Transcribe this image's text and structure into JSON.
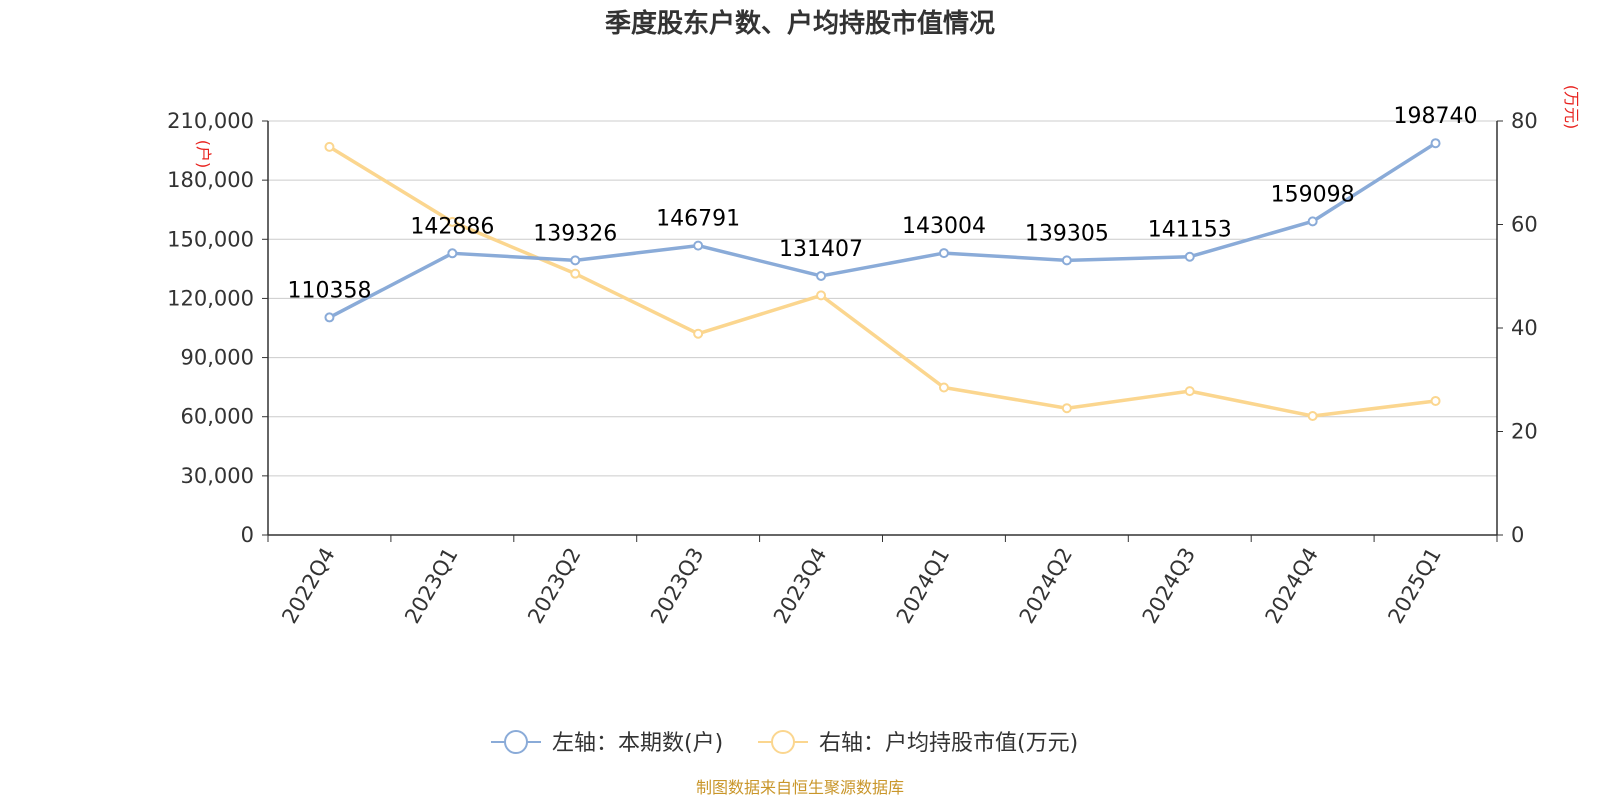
{
  "chart_data": {
    "type": "line",
    "title": "季度股东户数、户均持股市值情况",
    "categories": [
      "2022Q4",
      "2023Q1",
      "2023Q2",
      "2023Q3",
      "2023Q4",
      "2024Q1",
      "2024Q2",
      "2024Q3",
      "2024Q4",
      "2025Q1"
    ],
    "left_axis": {
      "unit": "(户)",
      "ylim": [
        0,
        210000
      ],
      "ticks": [
        0,
        30000,
        60000,
        90000,
        120000,
        150000,
        180000,
        210000
      ],
      "tick_labels": [
        "0",
        "30,000",
        "60,000",
        "90,000",
        "120,000",
        "150,000",
        "180,000",
        "210,000"
      ]
    },
    "right_axis": {
      "unit": "(万元)",
      "ylim": [
        0,
        80
      ],
      "ticks": [
        0,
        20,
        40,
        60,
        80
      ],
      "tick_labels": [
        "0",
        "20",
        "40",
        "60",
        "80"
      ]
    },
    "series": [
      {
        "name": "左轴：本期数(户)",
        "axis": "left",
        "color": "#8aabd8",
        "values": [
          110358,
          142886,
          139326,
          146791,
          131407,
          143004,
          139305,
          141153,
          159098,
          198740
        ],
        "data_labels": [
          "110358",
          "142886",
          "139326",
          "146791",
          "131407",
          "143004",
          "139305",
          "141153",
          "159098",
          "198740"
        ]
      },
      {
        "name": "右轴：户均持股市值(万元)",
        "axis": "right",
        "color": "#fbd68f",
        "values": [
          75.0,
          60.5,
          50.5,
          38.9,
          46.3,
          28.5,
          24.5,
          27.8,
          23.0,
          25.9
        ]
      }
    ],
    "grid": true,
    "legend_position": "bottom"
  },
  "source_text": "制图数据来自恒生聚源数据库"
}
